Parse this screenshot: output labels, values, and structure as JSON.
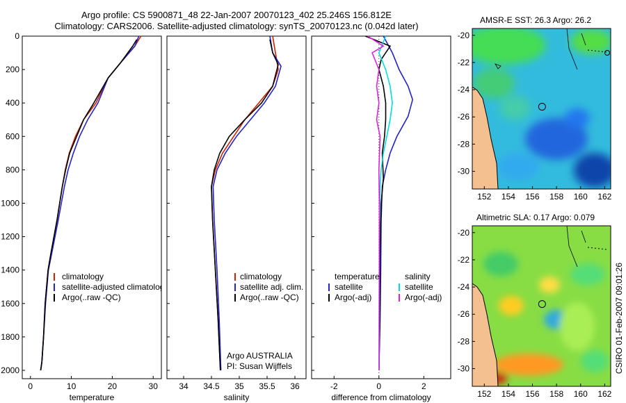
{
  "header": {
    "line1": "Argo profile: CS 5900871_48 22-Jan-2007 20070123_402 25.246S 156.812E",
    "line2": "Climatology: CARS2006. Satellite-adjusted climatology: synTS_20070123.nc (0.042d later)"
  },
  "chart_data": [
    {
      "type": "line",
      "id": "temperature",
      "xlabel": "temperature",
      "ylabel": "",
      "xlim": [
        -2,
        32
      ],
      "ylim": [
        2050,
        0
      ],
      "xticks": [
        0,
        10,
        20,
        30
      ],
      "yticks": [
        0,
        200,
        400,
        600,
        800,
        1000,
        1200,
        1400,
        1600,
        1800,
        2000
      ],
      "legend": [
        "climatology",
        "satellite-adjusted climatology",
        "Argo(..raw -QC)"
      ],
      "legend_colors": [
        "#cc2200",
        "#2222cc",
        "#000000"
      ],
      "series": [
        {
          "color": "#cc2200",
          "x": [
            27,
            25.5,
            22,
            19,
            16,
            13,
            11,
            9.5,
            8.5,
            7.8,
            6.5,
            5,
            4.3,
            3.6,
            3.2,
            2.8,
            2.5
          ],
          "y": [
            0,
            60,
            160,
            250,
            400,
            500,
            600,
            700,
            800,
            900,
            1100,
            1300,
            1400,
            1600,
            1800,
            1950,
            2000
          ]
        },
        {
          "color": "#2222cc",
          "x": [
            26.5,
            25.5,
            22,
            19,
            16.5,
            14,
            12,
            10.5,
            9.2,
            8.3,
            6.8,
            5.2,
            4.4,
            3.7,
            3.2,
            2.8,
            2.5
          ],
          "y": [
            0,
            60,
            160,
            250,
            400,
            500,
            600,
            700,
            800,
            900,
            1100,
            1300,
            1400,
            1600,
            1800,
            1950,
            2000
          ]
        },
        {
          "color": "#000000",
          "x": [
            26,
            25,
            22,
            19,
            15.5,
            13,
            11.3,
            9.6,
            8.6,
            7.8,
            6.5,
            5,
            4.3,
            3.6,
            3.2,
            2.8,
            2.5
          ],
          "y": [
            20,
            60,
            160,
            250,
            400,
            500,
            600,
            700,
            800,
            900,
            1100,
            1300,
            1400,
            1600,
            1800,
            1950,
            2000
          ]
        }
      ]
    },
    {
      "type": "line",
      "id": "salinity",
      "xlabel": "salinity",
      "xlim": [
        33.7,
        36.2
      ],
      "ylim": [
        2050,
        0
      ],
      "xticks": [
        34,
        34.5,
        35,
        35.5,
        36
      ],
      "legend": [
        "climatology",
        "satellite adj. clim.",
        "Argo(..raw -QC)"
      ],
      "legend_colors": [
        "#cc2200",
        "#2222cc",
        "#000000"
      ],
      "annotation": [
        "Argo AUSTRALIA",
        "PI: Susan Wijffels"
      ],
      "series": [
        {
          "color": "#cc2200",
          "x": [
            35.6,
            35.65,
            35.7,
            35.6,
            35.35,
            35.1,
            34.9,
            34.7,
            34.57,
            34.5,
            34.52,
            34.57,
            34.62,
            34.66
          ],
          "y": [
            0,
            100,
            200,
            300,
            400,
            500,
            600,
            700,
            800,
            900,
            1100,
            1400,
            1700,
            2000
          ]
        },
        {
          "color": "#2222cc",
          "x": [
            35.55,
            35.6,
            35.75,
            35.65,
            35.45,
            35.2,
            34.95,
            34.75,
            34.6,
            34.53,
            34.55,
            34.6,
            34.64,
            34.67
          ],
          "y": [
            0,
            100,
            180,
            300,
            400,
            500,
            600,
            700,
            800,
            900,
            1100,
            1400,
            1700,
            2000
          ]
        },
        {
          "color": "#000000",
          "x": [
            35.55,
            35.6,
            35.7,
            35.6,
            35.4,
            35.1,
            34.82,
            34.65,
            34.55,
            34.5,
            34.52,
            34.57,
            34.62,
            34.66
          ],
          "y": [
            20,
            100,
            170,
            300,
            400,
            500,
            600,
            700,
            800,
            900,
            1100,
            1400,
            1700,
            2000
          ]
        }
      ]
    },
    {
      "type": "line",
      "id": "difference",
      "xlabel": "difference from climatology",
      "xlim": [
        -3,
        3.2
      ],
      "ylim": [
        2050,
        0
      ],
      "xticks": [
        -2,
        0,
        2
      ],
      "legend_headers": [
        "temperature",
        "salinity"
      ],
      "legend_left": [
        "satellite",
        "Argo(-adj)"
      ],
      "legend_left_colors": [
        "#2222cc",
        "#000000"
      ],
      "legend_right": [
        "satellite",
        "Argo(-adj)"
      ],
      "legend_right_colors": [
        "#00dddd",
        "#dd22dd"
      ],
      "series": [
        {
          "color": "#2222cc",
          "x": [
            0.2,
            0.6,
            0.9,
            1.3,
            1.5,
            1.3,
            0.8,
            0.5,
            0.3,
            0.15,
            0.1,
            0.08,
            0.05,
            0
          ],
          "y": [
            0,
            100,
            200,
            300,
            380,
            480,
            600,
            700,
            800,
            900,
            1100,
            1400,
            1700,
            2000
          ]
        },
        {
          "color": "#000000",
          "x": [
            -0.6,
            0.5,
            0.1,
            0,
            0.2,
            0.3,
            0.3,
            0.25,
            0.15,
            0.2,
            0.1,
            0.05,
            0.05,
            0
          ],
          "y": [
            0,
            60,
            140,
            200,
            300,
            400,
            500,
            600,
            700,
            850,
            1000,
            1300,
            1600,
            2000
          ]
        },
        {
          "color": "#00dddd",
          "x": [
            0.3,
            0,
            0.3,
            0.5,
            0.6,
            0.5,
            0.35,
            0.2,
            0.1,
            0.05,
            0.02,
            0
          ],
          "y": [
            0,
            100,
            200,
            300,
            400,
            500,
            600,
            700,
            800,
            900,
            1200,
            2000
          ]
        },
        {
          "color": "#dd22dd",
          "x": [
            -0.5,
            0.2,
            -0.3,
            0,
            -0.1,
            0,
            -0.1,
            0.05,
            0,
            0.02,
            0.02,
            0.01
          ],
          "y": [
            0,
            60,
            100,
            200,
            300,
            400,
            500,
            600,
            800,
            1000,
            1500,
            2000
          ]
        }
      ]
    }
  ],
  "maps": [
    {
      "id": "sst",
      "title": "AMSR-E SST: 26.3 Argo: 26.2",
      "xticks": [
        152,
        154,
        156,
        158,
        160,
        162
      ],
      "yticks": [
        -20,
        -22,
        -24,
        -26,
        -28,
        -30
      ],
      "xlim": [
        151,
        162.5
      ],
      "ylim": [
        -31.3,
        -19.5
      ],
      "argo_position": [
        156.8,
        -25.25
      ]
    },
    {
      "id": "sla",
      "title": "Altimetric SLA: 0.17 Argo: 0.079",
      "xticks": [
        152,
        154,
        156,
        158,
        160,
        162
      ],
      "yticks": [
        -20,
        -22,
        -24,
        -26,
        -28,
        -30
      ],
      "xlim": [
        151,
        162.5
      ],
      "ylim": [
        -31.3,
        -19.5
      ],
      "argo_position": [
        156.8,
        -25.25
      ]
    }
  ],
  "footer": {
    "timestamp": "CSIRO 01-Feb-2007 09:01:26"
  },
  "colors": {
    "land": "#f5c090",
    "sst_base": "#33bbdd",
    "sst_warm": "#44dd55",
    "sst_cool": "#2266dd",
    "sla_base": "#88dd44",
    "sla_hi": "#ffcc22",
    "sla_low": "#33aadd"
  }
}
